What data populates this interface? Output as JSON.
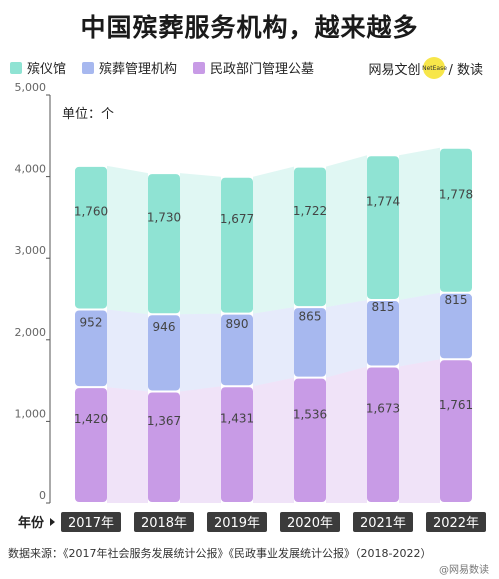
{
  "title": "中国殡葬服务机构，越来越多",
  "legend": [
    {
      "label": "殡仪馆",
      "color": "#8fe3d3"
    },
    {
      "label": "殡葬管理机构",
      "color": "#a7b8ef"
    },
    {
      "label": "民政部门管理公墓",
      "color": "#c89be6"
    }
  ],
  "brand": {
    "left": "网易文创",
    "badge": "NetEase",
    "right": "/ 数读"
  },
  "source": "数据来源：《2017年社会服务发展统计公报》《民政事业发展统计公报》（2018-2022）",
  "watermark": "@网易数读",
  "chart_data": {
    "type": "bar",
    "stacked": true,
    "title": "中国殡葬服务机构，越来越多",
    "xlabel": "年份",
    "unit_label": "单位：个",
    "categories": [
      "2017年",
      "2018年",
      "2019年",
      "2020年",
      "2021年",
      "2022年"
    ],
    "series": [
      {
        "name": "民政部门管理公墓",
        "color": "#c89be6",
        "values": [
          1420,
          1367,
          1431,
          1536,
          1673,
          1761
        ]
      },
      {
        "name": "殡葬管理机构",
        "color": "#a7b8ef",
        "values": [
          952,
          946,
          890,
          865,
          815,
          815
        ]
      },
      {
        "name": "殡仪馆",
        "color": "#8fe3d3",
        "values": [
          1760,
          1730,
          1677,
          1722,
          1774,
          1778
        ]
      }
    ],
    "ylim": [
      0,
      5000
    ],
    "yticks": [
      "0",
      "1,000",
      "2,000",
      "3,000",
      "4,000",
      "5,000"
    ],
    "grid": false,
    "legend_position": "top-left"
  }
}
